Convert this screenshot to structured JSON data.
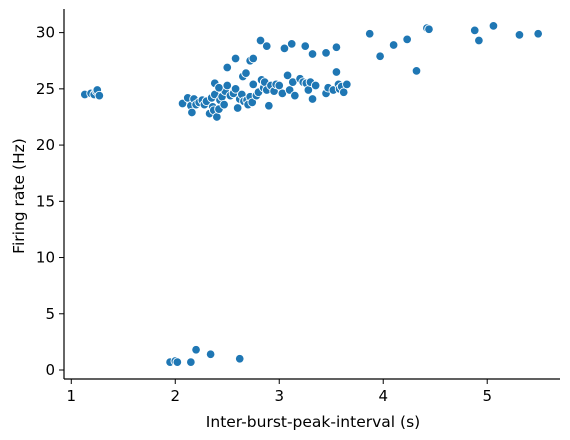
{
  "chart_data": {
    "type": "scatter",
    "xlabel": "Inter-burst-peak-interval (s)",
    "ylabel": "Firing rate (Hz)",
    "xlim": [
      0.93,
      5.7
    ],
    "ylim": [
      -0.8,
      32.1
    ],
    "xticks": [
      1,
      2,
      3,
      4,
      5
    ],
    "yticks": [
      0,
      5,
      10,
      15,
      20,
      25,
      30
    ],
    "grid": false,
    "point_color": "#1f77b4",
    "series": [
      {
        "x": [
          1.13,
          1.19,
          1.22,
          1.24,
          1.25,
          1.27,
          1.95,
          2.0,
          2.02,
          2.15,
          2.2,
          2.34,
          2.62,
          2.07,
          2.12,
          2.15,
          2.16,
          2.18,
          2.2,
          2.23,
          2.26,
          2.28,
          2.3,
          2.33,
          2.35,
          2.36,
          2.37,
          2.38,
          2.4,
          2.42,
          2.43,
          2.45,
          2.47,
          2.48,
          2.5,
          2.53,
          2.56,
          2.58,
          2.6,
          2.62,
          2.64,
          2.66,
          2.69,
          2.7,
          2.72,
          2.74,
          2.75,
          2.78,
          2.8,
          2.83,
          2.85,
          2.86,
          2.88,
          2.9,
          2.92,
          2.95,
          2.97,
          3.0,
          3.03,
          3.08,
          3.1,
          3.13,
          3.15,
          3.2,
          3.23,
          3.26,
          3.28,
          3.3,
          3.32,
          3.35,
          3.45,
          3.47,
          3.52,
          3.55,
          3.57,
          3.58,
          3.6,
          3.62,
          3.65,
          2.38,
          2.42,
          2.5,
          2.58,
          2.65,
          2.68,
          2.72,
          2.75,
          2.82,
          2.88,
          3.05,
          3.12,
          3.25,
          3.32,
          3.45,
          3.55,
          3.87,
          3.97,
          4.1,
          4.23,
          4.32,
          4.42,
          4.44,
          4.88,
          4.92,
          5.06,
          5.31,
          5.49
        ],
        "y": [
          24.5,
          24.6,
          24.5,
          24.8,
          24.9,
          24.4,
          0.7,
          0.8,
          0.7,
          0.7,
          1.8,
          1.4,
          1.0,
          23.7,
          24.2,
          23.5,
          22.9,
          24.1,
          23.6,
          23.8,
          24.0,
          23.6,
          23.9,
          22.8,
          24.2,
          23.4,
          23.1,
          24.5,
          22.5,
          23.2,
          24.0,
          24.3,
          23.6,
          24.8,
          25.3,
          24.4,
          24.6,
          25.0,
          23.3,
          24.1,
          24.5,
          23.9,
          24.0,
          23.6,
          24.3,
          23.8,
          25.4,
          24.4,
          24.7,
          25.8,
          25.1,
          25.6,
          24.9,
          23.5,
          25.3,
          24.8,
          25.4,
          25.3,
          24.6,
          26.2,
          24.9,
          25.6,
          24.4,
          25.9,
          25.6,
          25.5,
          24.9,
          25.6,
          24.1,
          25.3,
          24.6,
          25.1,
          24.9,
          26.5,
          25.4,
          25.0,
          25.2,
          24.7,
          25.4,
          25.5,
          25.1,
          26.9,
          27.7,
          26.1,
          26.4,
          27.5,
          27.7,
          29.3,
          28.8,
          28.6,
          29.0,
          28.8,
          28.1,
          28.2,
          28.7,
          29.9,
          27.9,
          28.9,
          29.4,
          26.6,
          30.4,
          30.3,
          30.2,
          29.3,
          30.6,
          29.8,
          29.9
        ]
      }
    ]
  }
}
